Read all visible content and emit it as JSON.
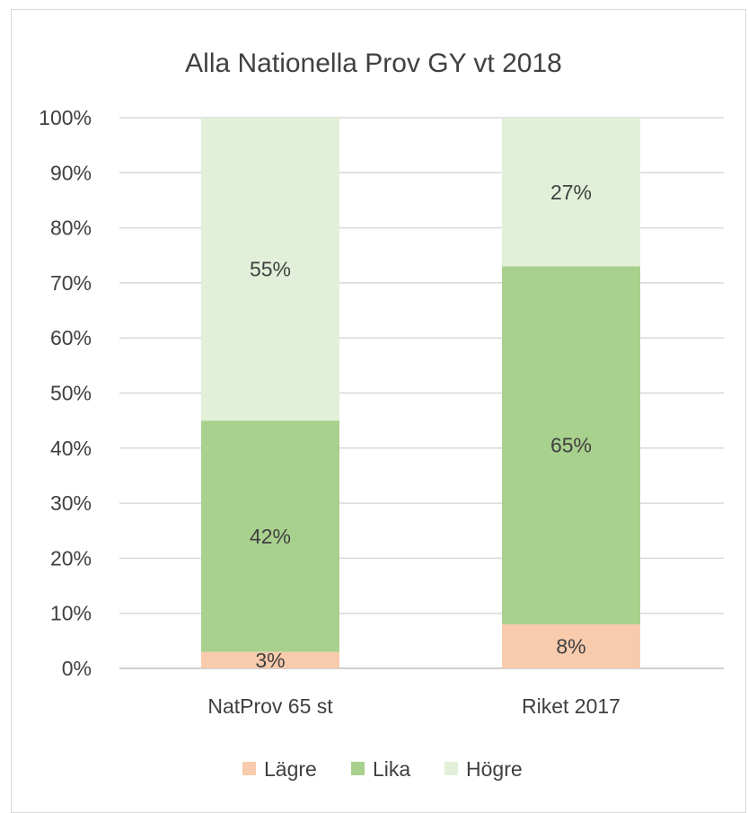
{
  "chart_data": {
    "type": "bar",
    "stacked": true,
    "percent_stacked": true,
    "title": "Alla Nationella Prov GY vt 2018",
    "xlabel": "",
    "ylabel": "",
    "categories": [
      "NatProv 65 st",
      "Riket 2017"
    ],
    "series": [
      {
        "name": "Lägre",
        "values": [
          3,
          8
        ],
        "labels": [
          "3%",
          "8%"
        ],
        "color": "#f8cbad"
      },
      {
        "name": "Lika",
        "values": [
          42,
          65
        ],
        "labels": [
          "42%",
          "65%"
        ],
        "color": "#a9d18e"
      },
      {
        "name": "Högre",
        "values": [
          55,
          27
        ],
        "labels": [
          "55%",
          "27%"
        ],
        "color": "#e2f0d9"
      }
    ],
    "ylim": [
      0,
      100
    ],
    "yticks": [
      "0%",
      "10%",
      "20%",
      "30%",
      "40%",
      "50%",
      "60%",
      "70%",
      "80%",
      "90%",
      "100%"
    ],
    "grid": true,
    "legend_position": "bottom"
  }
}
